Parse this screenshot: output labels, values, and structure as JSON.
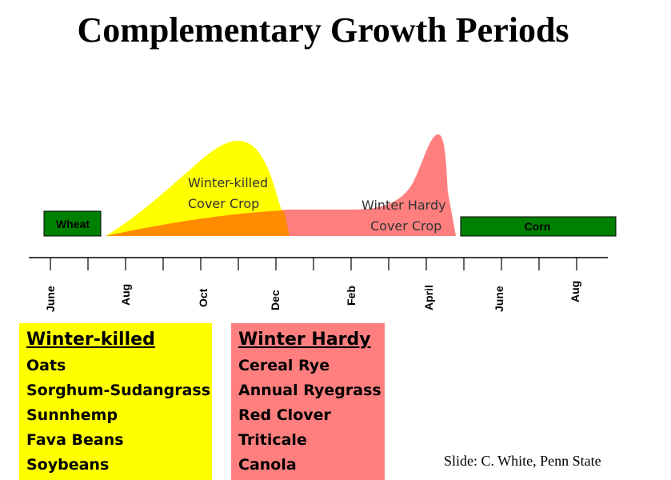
{
  "title": "Complementary Growth Periods",
  "bars": {
    "wheat": "Wheat",
    "corn": "Corn"
  },
  "curves": {
    "winter_killed": {
      "line1": "Winter-killed",
      "line2": "Cover Crop"
    },
    "winter_hardy": {
      "line1": "Winter Hardy",
      "line2": "Cover Crop"
    }
  },
  "months": [
    "June",
    "Aug",
    "Oct",
    "Dec",
    "Feb",
    "April",
    "June",
    "Aug"
  ],
  "colors": {
    "winter_killed": "#ffff00",
    "winter_hardy": "#ff7f7f",
    "overlap": "#ff8c00",
    "bars": "#008000"
  },
  "panels": {
    "winter_killed": {
      "heading": "Winter-killed",
      "items": [
        "Oats",
        "Sorghum-Sudangrass",
        "Sunnhemp",
        "Fava Beans",
        "Soybeans"
      ]
    },
    "winter_hardy": {
      "heading": "Winter Hardy",
      "items": [
        "Cereal Rye",
        "Annual Ryegrass",
        "Red Clover",
        "Triticale",
        "Canola"
      ]
    }
  },
  "credit": "Slide: C. White, Penn State"
}
